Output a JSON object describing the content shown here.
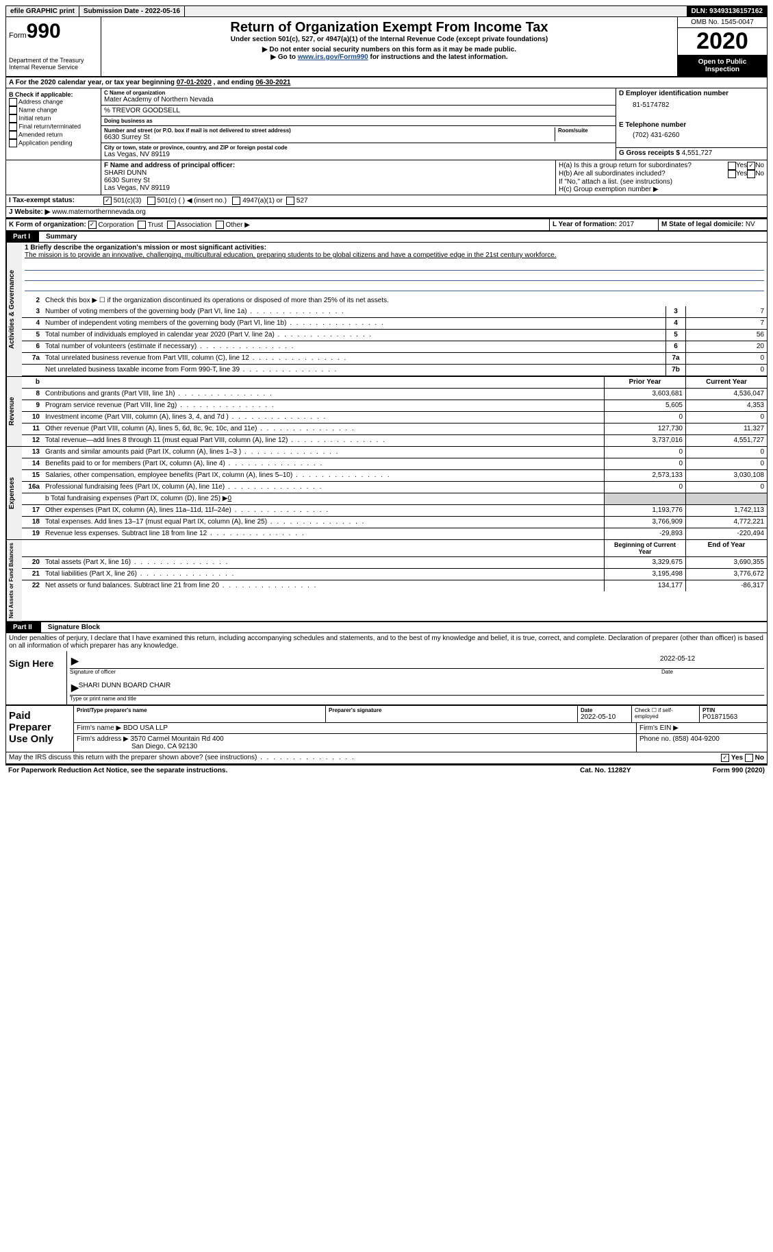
{
  "topbar": {
    "efile": "efile GRAPHIC print",
    "submission": "Submission Date - 2022-05-16",
    "dln": "DLN: 93493136157162"
  },
  "header": {
    "form_label": "Form",
    "form_num": "990",
    "dept": "Department of the Treasury\nInternal Revenue Service",
    "title": "Return of Organization Exempt From Income Tax",
    "subtitle": "Under section 501(c), 527, or 4947(a)(1) of the Internal Revenue Code (except private foundations)",
    "note1": "▶ Do not enter social security numbers on this form as it may be made public.",
    "note2_pre": "▶ Go to ",
    "note2_link": "www.irs.gov/Form990",
    "note2_post": " for instructions and the latest information.",
    "omb": "OMB No. 1545-0047",
    "year": "2020",
    "inspection": "Open to Public Inspection"
  },
  "rowA": {
    "text_pre": "A For the 2020 calendar year, or tax year beginning ",
    "begin": "07-01-2020",
    "mid": " , and ending ",
    "end": "06-30-2021"
  },
  "boxB": {
    "title": "B Check if applicable:",
    "opts": [
      "Address change",
      "Name change",
      "Initial return",
      "Final return/terminated",
      "Amended return",
      "Application pending"
    ]
  },
  "boxC": {
    "label": "C Name of organization",
    "org": "Mater Academy of Northern Nevada",
    "care": "% TREVOR GOODSELL",
    "dba_label": "Doing business as",
    "addr_label": "Number and street (or P.O. box if mail is not delivered to street address)",
    "room_label": "Room/suite",
    "addr": "6630 Surrey St",
    "city_label": "City or town, state or province, country, and ZIP or foreign postal code",
    "city": "Las Vegas, NV  89119"
  },
  "boxD": {
    "label": "D Employer identification number",
    "ein": "81-5174782",
    "phone_label": "E Telephone number",
    "phone": "(702) 431-6260",
    "gross_label": "G Gross receipts $",
    "gross": "4,551,727"
  },
  "boxF": {
    "label": "F  Name and address of principal officer:",
    "name": "SHARI DUNN",
    "addr": "6630 Surrey St",
    "city": "Las Vegas, NV  89119"
  },
  "boxH": {
    "a_label": "H(a)  Is this a group return for subordinates?",
    "b_label": "H(b)  Are all subordinates included?",
    "b_note": "If \"No,\" attach a list. (see instructions)",
    "c_label": "H(c)  Group exemption number ▶"
  },
  "rowI": {
    "label": "I    Tax-exempt status:",
    "opt1": "501(c)(3)",
    "opt2": "501(c) (  ) ◀ (insert no.)",
    "opt3": "4947(a)(1) or",
    "opt4": "527"
  },
  "rowJ": {
    "label": "J   Website: ▶",
    "url": "www.maternorthernnevada.org"
  },
  "rowK": {
    "label": "K Form of organization:",
    "opts": [
      "Corporation",
      "Trust",
      "Association",
      "Other ▶"
    ]
  },
  "rowL": {
    "l_label": "L Year of formation:",
    "l_val": "2017",
    "m_label": "M State of legal domicile:",
    "m_val": "NV"
  },
  "part1": {
    "num": "Part I",
    "title": "Summary"
  },
  "mission": {
    "line1_label": "1  Briefly describe the organization's mission or most significant activities:",
    "text": "The mission is to provide an innovative, challenging, multicultural education, preparing students to be global citizens and have a competitive edge in the 21st century workforce."
  },
  "governance": {
    "side": "Activities & Governance",
    "line2": "Check this box ▶ ☐  if the organization discontinued its operations or disposed of more than 25% of its net assets.",
    "lines": [
      {
        "n": "3",
        "t": "Number of voting members of the governing body (Part VI, line 1a)",
        "box": "3",
        "v": "7"
      },
      {
        "n": "4",
        "t": "Number of independent voting members of the governing body (Part VI, line 1b)",
        "box": "4",
        "v": "7"
      },
      {
        "n": "5",
        "t": "Total number of individuals employed in calendar year 2020 (Part V, line 2a)",
        "box": "5",
        "v": "56"
      },
      {
        "n": "6",
        "t": "Total number of volunteers (estimate if necessary)",
        "box": "6",
        "v": "20"
      },
      {
        "n": "7a",
        "t": "Total unrelated business revenue from Part VIII, column (C), line 12",
        "box": "7a",
        "v": "0"
      },
      {
        "n": "",
        "t": "Net unrelated business taxable income from Form 990-T, line 39",
        "box": "7b",
        "v": "0"
      }
    ]
  },
  "revenue": {
    "side": "Revenue",
    "prior_h": "Prior Year",
    "current_h": "Current Year",
    "lines": [
      {
        "n": "8",
        "t": "Contributions and grants (Part VIII, line 1h)",
        "p": "3,603,681",
        "c": "4,536,047"
      },
      {
        "n": "9",
        "t": "Program service revenue (Part VIII, line 2g)",
        "p": "5,605",
        "c": "4,353"
      },
      {
        "n": "10",
        "t": "Investment income (Part VIII, column (A), lines 3, 4, and 7d )",
        "p": "0",
        "c": "0"
      },
      {
        "n": "11",
        "t": "Other revenue (Part VIII, column (A), lines 5, 6d, 8c, 9c, 10c, and 11e)",
        "p": "127,730",
        "c": "11,327"
      },
      {
        "n": "12",
        "t": "Total revenue—add lines 8 through 11 (must equal Part VIII, column (A), line 12)",
        "p": "3,737,016",
        "c": "4,551,727"
      }
    ]
  },
  "expenses": {
    "side": "Expenses",
    "lines": [
      {
        "n": "13",
        "t": "Grants and similar amounts paid (Part IX, column (A), lines 1–3 )",
        "p": "0",
        "c": "0"
      },
      {
        "n": "14",
        "t": "Benefits paid to or for members (Part IX, column (A), line 4)",
        "p": "0",
        "c": "0"
      },
      {
        "n": "15",
        "t": "Salaries, other compensation, employee benefits (Part IX, column (A), lines 5–10)",
        "p": "2,573,133",
        "c": "3,030,108"
      },
      {
        "n": "16a",
        "t": "Professional fundraising fees (Part IX, column (A), line 11e)",
        "p": "0",
        "c": "0"
      }
    ],
    "line_b": "b  Total fundraising expenses (Part IX, column (D), line 25) ▶",
    "line_b_val": "0",
    "lines2": [
      {
        "n": "17",
        "t": "Other expenses (Part IX, column (A), lines 11a–11d, 11f–24e)",
        "p": "1,193,776",
        "c": "1,742,113"
      },
      {
        "n": "18",
        "t": "Total expenses. Add lines 13–17 (must equal Part IX, column (A), line 25)",
        "p": "3,766,909",
        "c": "4,772,221"
      },
      {
        "n": "19",
        "t": "Revenue less expenses. Subtract line 18 from line 12",
        "p": "-29,893",
        "c": "-220,494"
      }
    ]
  },
  "netassets": {
    "side": "Net Assets or Fund Balances",
    "begin_h": "Beginning of Current Year",
    "end_h": "End of Year",
    "lines": [
      {
        "n": "20",
        "t": "Total assets (Part X, line 16)",
        "p": "3,329,675",
        "c": "3,690,355"
      },
      {
        "n": "21",
        "t": "Total liabilities (Part X, line 26)",
        "p": "3,195,498",
        "c": "3,776,672"
      },
      {
        "n": "22",
        "t": "Net assets or fund balances. Subtract line 21 from line 20",
        "p": "134,177",
        "c": "-86,317"
      }
    ]
  },
  "part2": {
    "num": "Part II",
    "title": "Signature Block"
  },
  "penalties": "Under penalties of perjury, I declare that I have examined this return, including accompanying schedules and statements, and to the best of my knowledge and belief, it is true, correct, and complete. Declaration of preparer (other than officer) is based on all information of which preparer has any knowledge.",
  "sign": {
    "here": "Sign Here",
    "sig_label": "Signature of officer",
    "date_label": "Date",
    "date": "2022-05-12",
    "name": "SHARI DUNN  BOARD CHAIR",
    "name_label": "Type or print name and title"
  },
  "preparer": {
    "title": "Paid Preparer Use Only",
    "print_label": "Print/Type preparer's name",
    "sig_label": "Preparer's signature",
    "date_label": "Date",
    "date": "2022-05-10",
    "check_label": "Check ☐ if self-employed",
    "ptin_label": "PTIN",
    "ptin": "P01871563",
    "firm_label": "Firm's name    ▶",
    "firm": "BDO USA LLP",
    "ein_label": "Firm's EIN ▶",
    "addr_label": "Firm's address ▶",
    "addr1": "3570 Carmel Mountain Rd 400",
    "addr2": "San Diego, CA  92130",
    "phone_label": "Phone no.",
    "phone": "(858) 404-9200"
  },
  "discuss": {
    "text": "May the IRS discuss this return with the preparer shown above? (see instructions)",
    "yes": "Yes",
    "no": "No"
  },
  "footer": {
    "left": "For Paperwork Reduction Act Notice, see the separate instructions.",
    "mid": "Cat. No. 11282Y",
    "right": "Form 990 (2020)"
  }
}
